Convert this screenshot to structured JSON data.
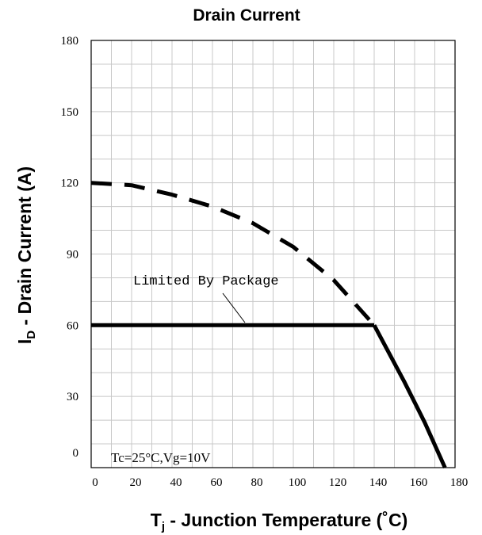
{
  "chart_data": {
    "type": "line",
    "title": "Drain Current",
    "xlabel": {
      "main": "T",
      "sub": "j",
      "rest": " - Junction Temperature (˚C)"
    },
    "ylabel": {
      "main": "I",
      "sub": "D",
      "rest": " - Drain Current (A)"
    },
    "xlim": [
      0,
      180
    ],
    "ylim": [
      0,
      180
    ],
    "x_ticks": [
      "0",
      "20",
      "40",
      "60",
      "80",
      "100",
      "120",
      "140",
      "160",
      "180"
    ],
    "y_ticks": [
      "0",
      "30",
      "60",
      "90",
      "120",
      "150",
      "180"
    ],
    "grid": true,
    "series": [
      {
        "style": "dashed",
        "x": [
          0,
          20,
          40,
          60,
          80,
          100,
          120,
          140
        ],
        "y": [
          120,
          119,
          115,
          110,
          103,
          93,
          79,
          60
        ]
      },
      {
        "style": "solid",
        "x": [
          0,
          140
        ],
        "y": [
          60,
          60
        ]
      },
      {
        "style": "solid",
        "x": [
          140,
          155,
          165,
          175
        ],
        "y": [
          60,
          36,
          19,
          0
        ]
      }
    ],
    "annotations": {
      "package_label": "Limited By Package",
      "conditions": "Tc=25°C,Vg=10V"
    }
  }
}
